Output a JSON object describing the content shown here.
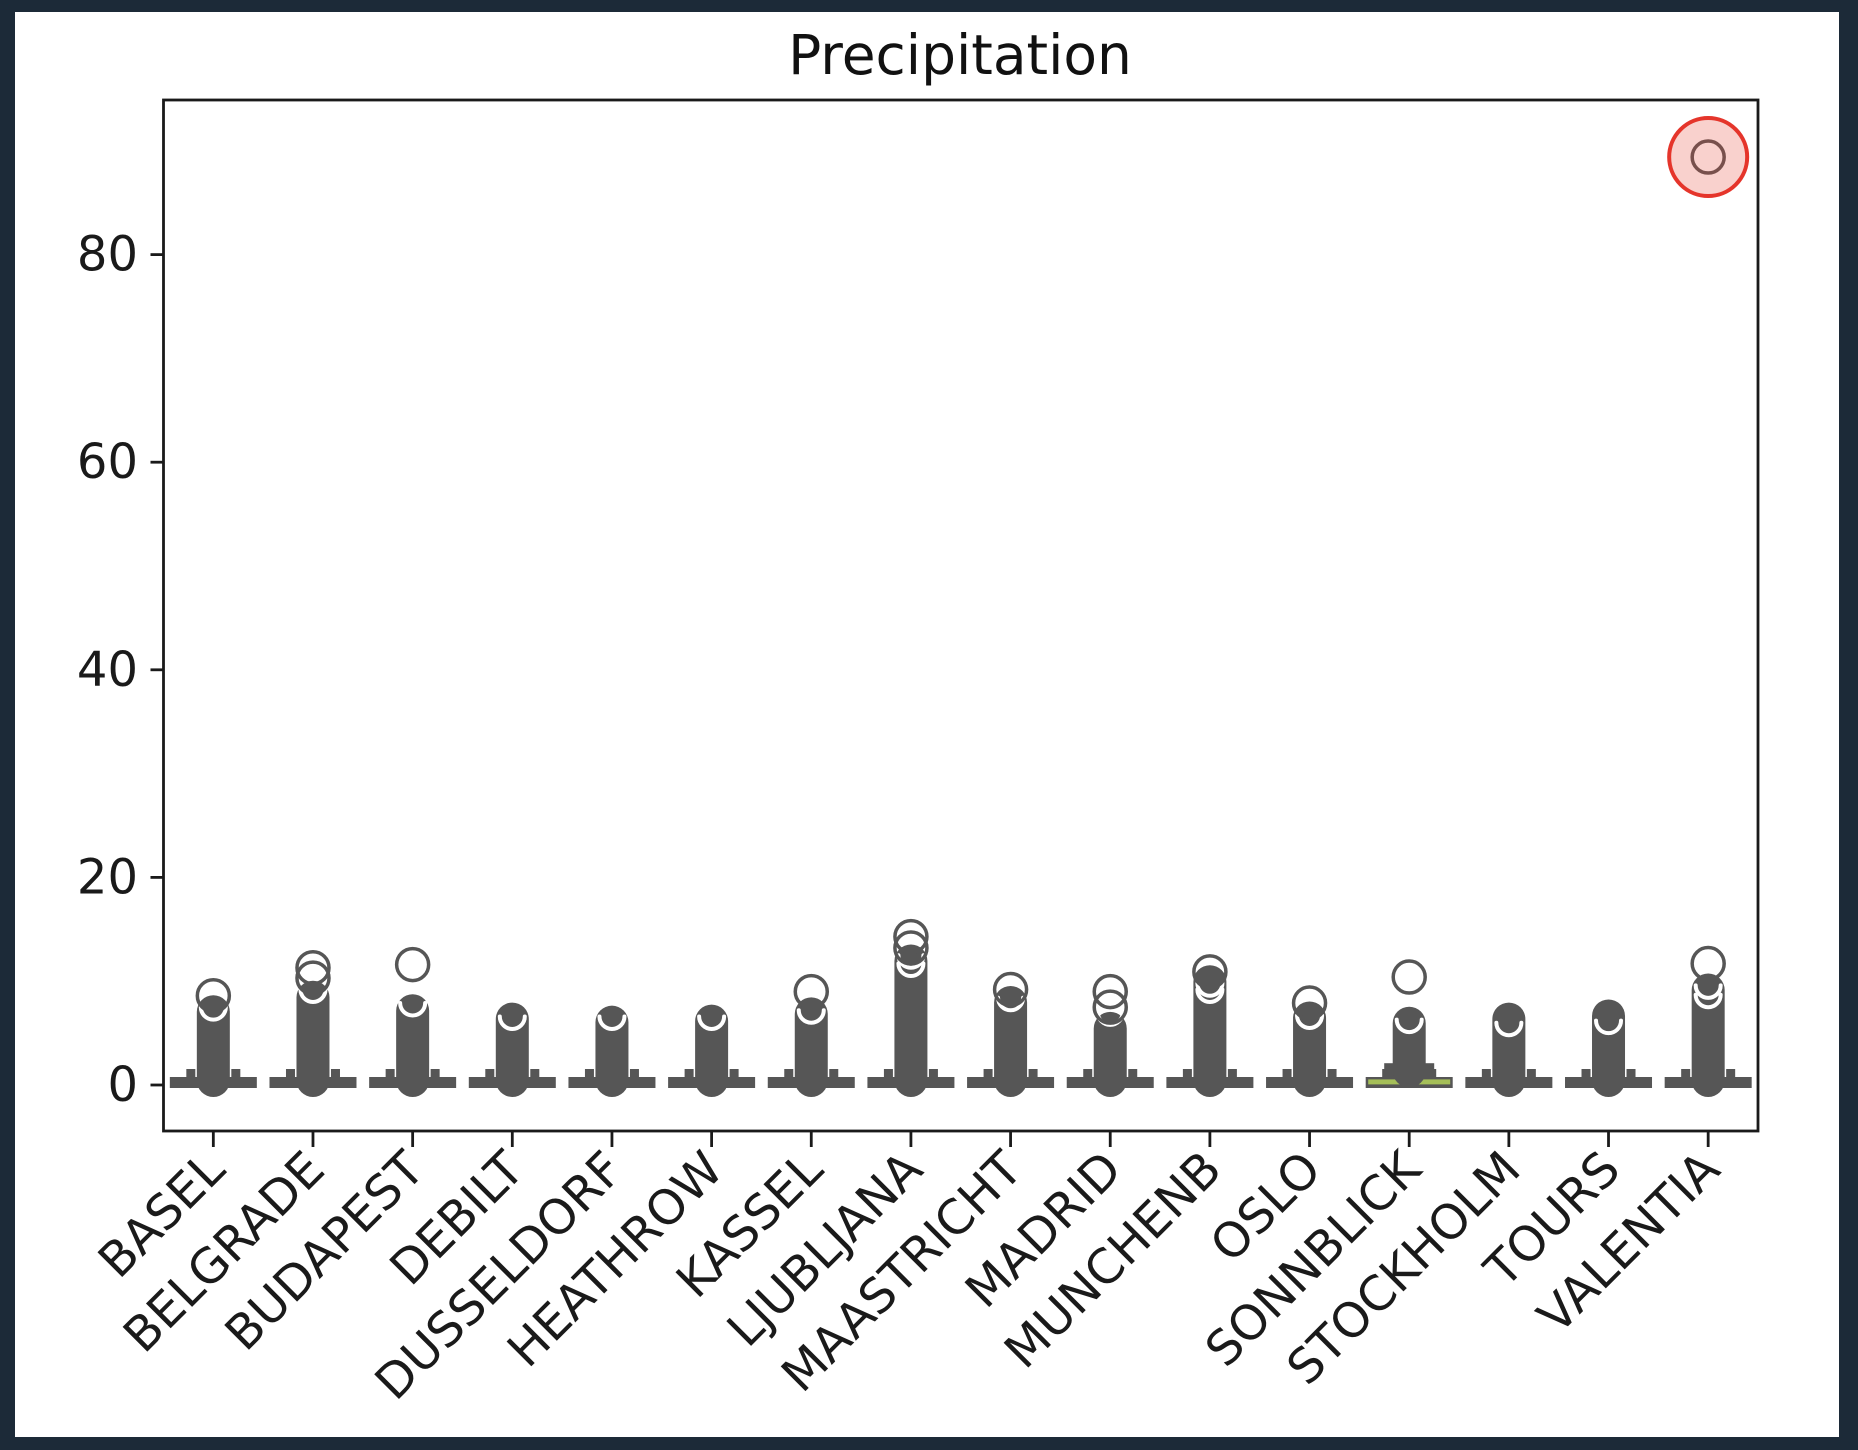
{
  "title": "Precipitation",
  "colors": {
    "frame_background": "#1c2a38",
    "figure_background": "#ffffff",
    "axis": "#1a1a1a",
    "marker_gray": "#565656",
    "median_olive": "#a5bf58",
    "highlight_red": "#e5352b",
    "highlight_fill": "rgba(229,62,48,0.24)"
  },
  "chart_data": {
    "type": "boxplot",
    "title": "Precipitation",
    "xlabel": "",
    "ylabel": "",
    "grid": false,
    "legend": null,
    "y_ticks": [
      0,
      20,
      40,
      60,
      80
    ],
    "ylim": [
      -4.4,
      94.9
    ],
    "box_span_all": [
      0,
      0.9
    ],
    "whisker_value_all": 0,
    "categories": [
      "BASEL",
      "BELGRADE",
      "BUDAPEST",
      "DEBILT",
      "DUSSELDORF",
      "HEATHROW",
      "KASSEL",
      "LJUBLJANA",
      "MAASTRICHT",
      "MADRID",
      "MUNCHENB",
      "OSLO",
      "SONNBLICK",
      "STOCKHOLM",
      "TOURS",
      "VALENTIA"
    ],
    "series": [
      {
        "label": "BASEL",
        "dense_flier_top": 7.1,
        "gap_arcs": [
          7.5
        ],
        "fliers": [
          8.6
        ]
      },
      {
        "label": "BELGRADE",
        "dense_flier_top": 8.5,
        "gap_arcs": [
          9.2
        ],
        "fliers": [
          11.3,
          10.3
        ]
      },
      {
        "label": "BUDAPEST",
        "dense_flier_top": 7.2,
        "gap_arcs": [
          7.9
        ],
        "fliers": [
          11.6
        ]
      },
      {
        "label": "DEBILT",
        "dense_flier_top": 6.4,
        "gap_arcs": [
          6.6
        ],
        "fliers": []
      },
      {
        "label": "DUSSELDORF",
        "dense_flier_top": 6.1,
        "gap_arcs": [
          6.6
        ],
        "fliers": []
      },
      {
        "label": "HEATHROW",
        "dense_flier_top": 6.2,
        "gap_arcs": [
          6.6
        ],
        "fliers": []
      },
      {
        "label": "KASSEL",
        "dense_flier_top": 6.9,
        "gap_arcs": [
          7.2
        ],
        "fliers": [
          9.0
        ]
      },
      {
        "label": "LJUBLJANA",
        "dense_flier_top": 12.0,
        "gap_arcs": [
          12.5,
          11.7
        ],
        "fliers": [
          14.3,
          13.2
        ]
      },
      {
        "label": "MAASTRICHT",
        "dense_flier_top": 8.0,
        "gap_arcs": [
          8.4
        ],
        "fliers": [
          9.2
        ]
      },
      {
        "label": "MADRID",
        "dense_flier_top": 5.5,
        "gap_arcs": [
          7.0
        ],
        "fliers": [
          9.0,
          7.5
        ]
      },
      {
        "label": "MUNCHENB",
        "dense_flier_top": 10.0,
        "gap_arcs": [
          9.8,
          9.2
        ],
        "fliers": [
          10.9
        ]
      },
      {
        "label": "OSLO",
        "dense_flier_top": 6.5,
        "gap_arcs": [
          6.7
        ],
        "fliers": [
          7.9
        ]
      },
      {
        "label": "SONNBLICK",
        "dense_flier_top": 6.0,
        "gap_arcs": [
          6.3
        ],
        "fliers": [
          10.4
        ],
        "median_visible": true,
        "median": 0.3,
        "box_top": 2.1,
        "column_bottom": 1.3
      },
      {
        "label": "STOCKHOLM",
        "dense_flier_top": 6.4,
        "gap_arcs": [
          6.0
        ],
        "fliers": []
      },
      {
        "label": "TOURS",
        "dense_flier_top": 6.7,
        "gap_arcs": [
          6.2
        ],
        "fliers": []
      },
      {
        "label": "VALENTIA",
        "dense_flier_top": 9.2,
        "gap_arcs": [
          9.6,
          8.7
        ],
        "fliers": [
          11.7,
          89.4
        ]
      }
    ],
    "highlight": {
      "category": "VALENTIA",
      "value": 89.4,
      "shape": "circle-annotation",
      "stroke": "#e5352b"
    }
  }
}
